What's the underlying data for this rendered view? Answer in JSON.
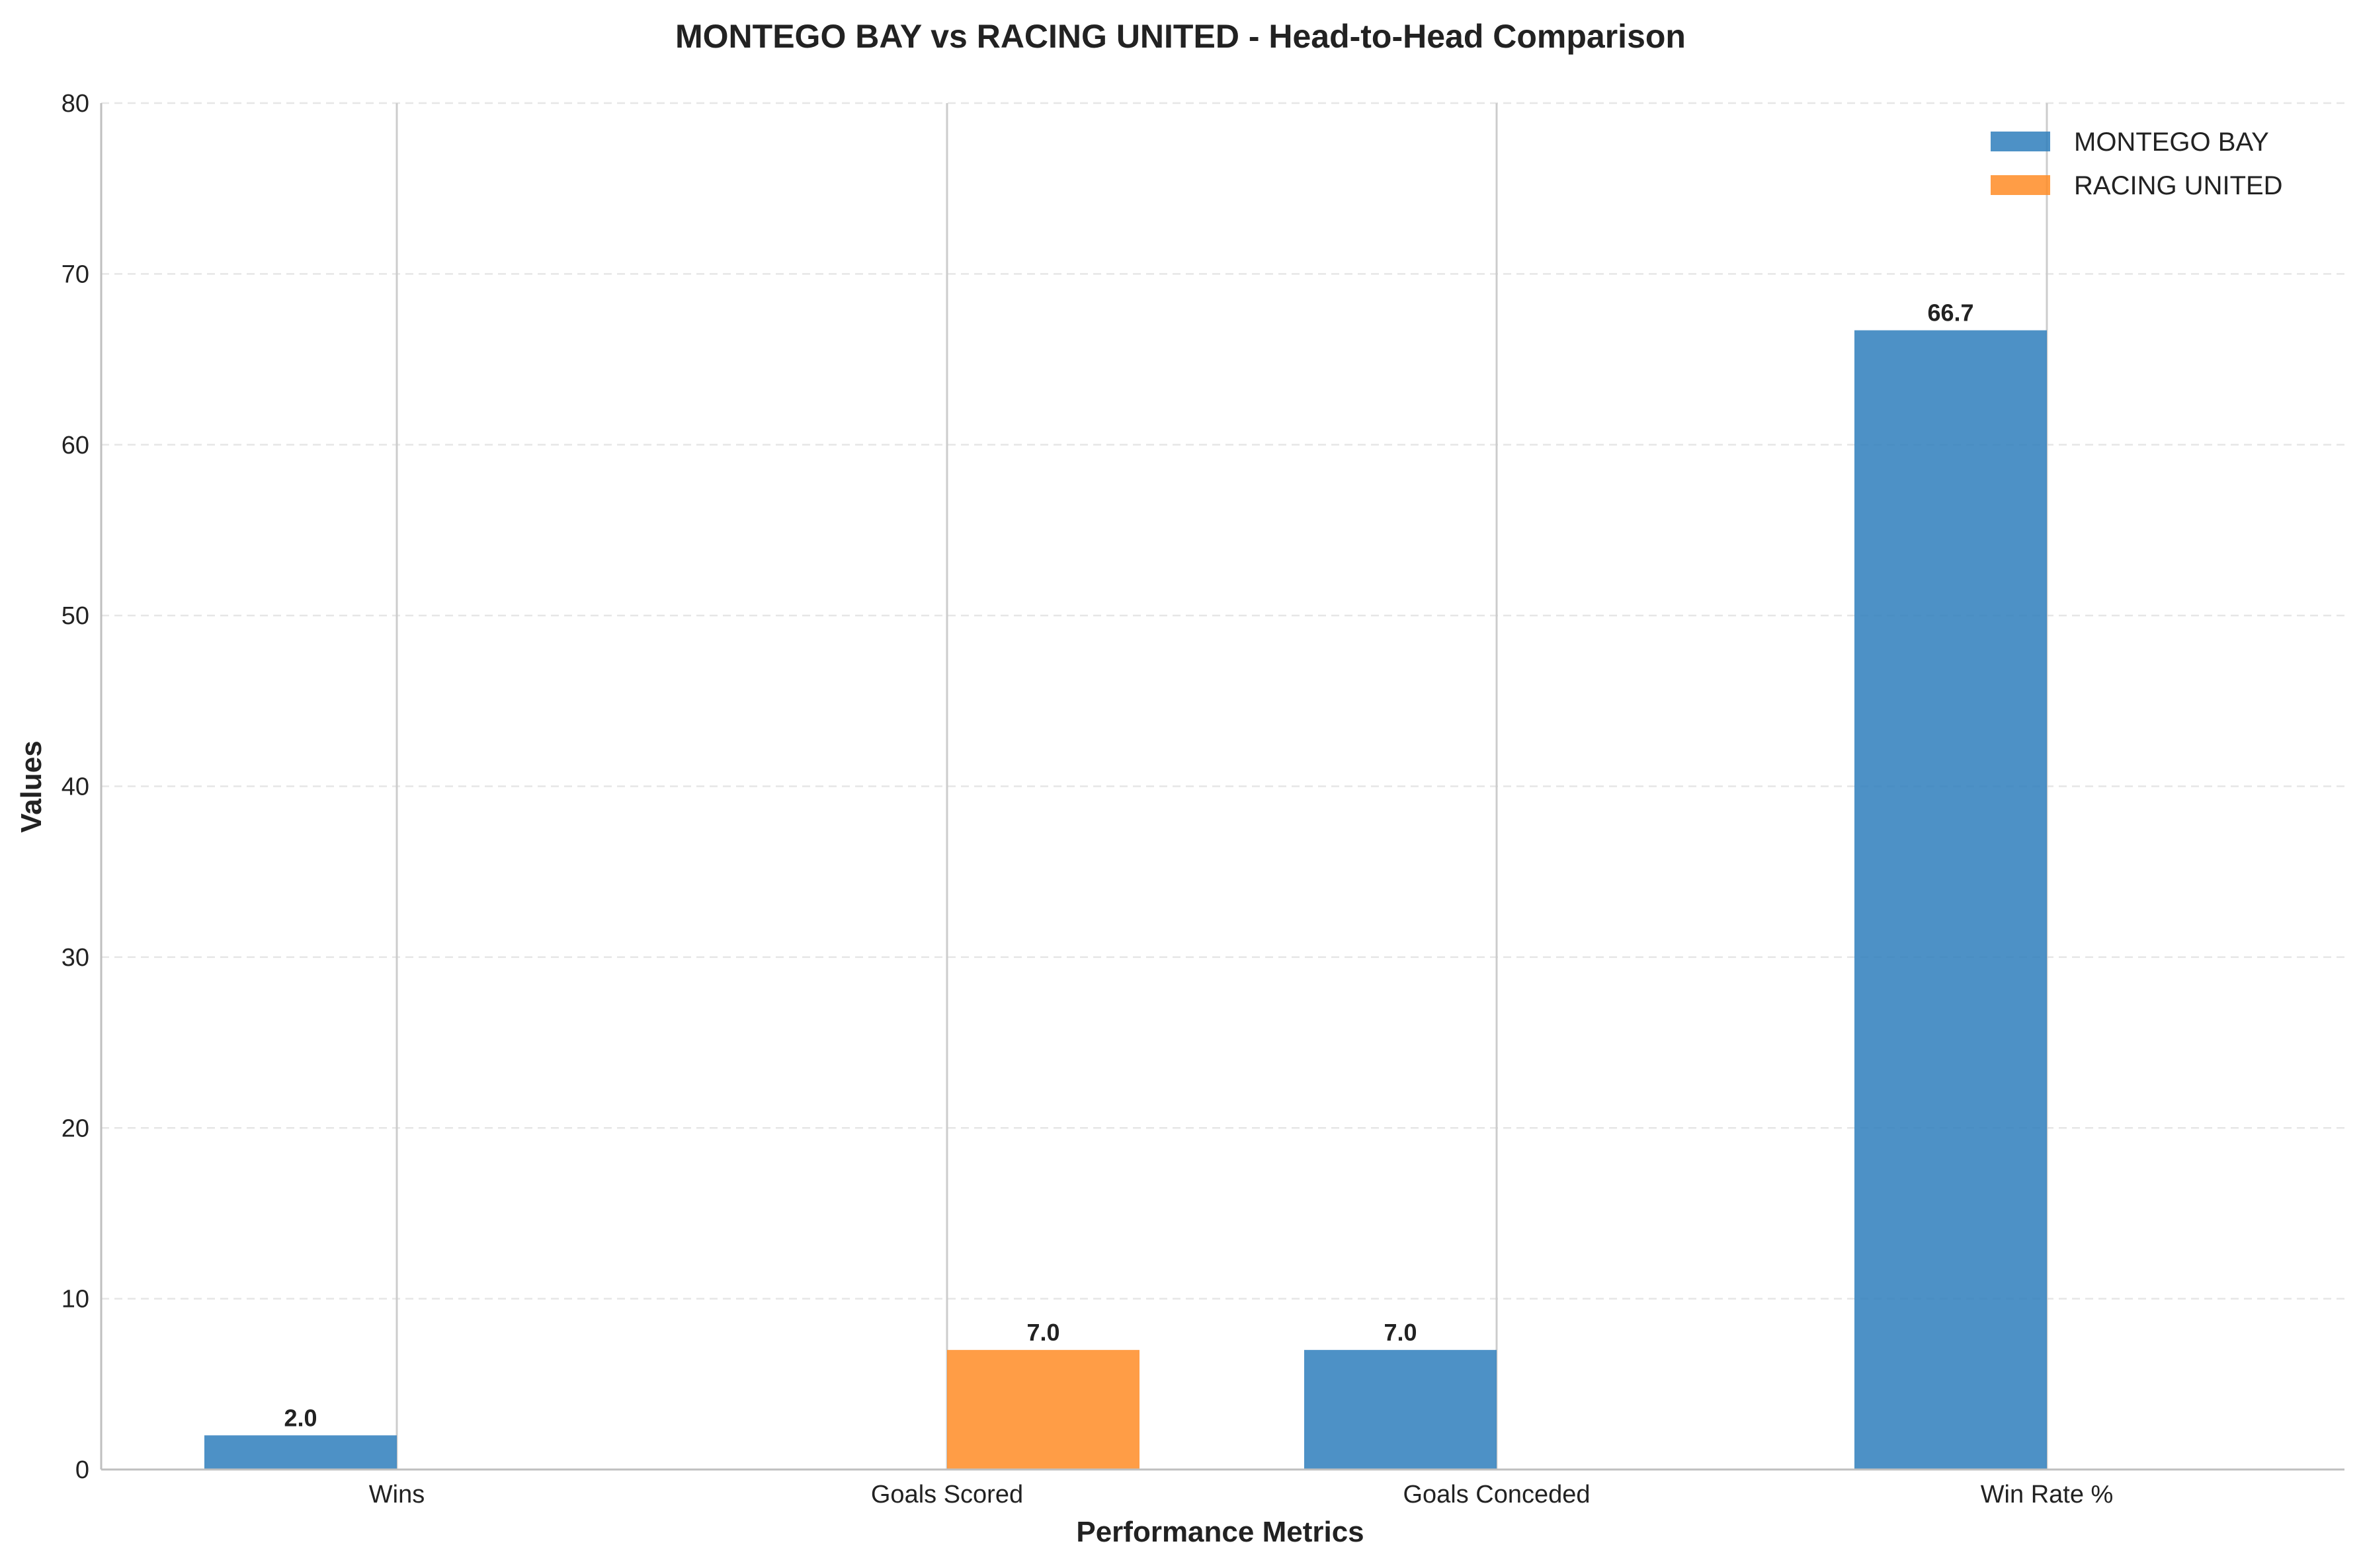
{
  "chart_data": {
    "type": "bar",
    "title": "MONTEGO BAY vs RACING UNITED - Head-to-Head Comparison",
    "xlabel": "Performance Metrics",
    "ylabel": "Values",
    "categories": [
      "Wins",
      "Goals Scored",
      "Goals Conceded",
      "Win Rate %"
    ],
    "series": [
      {
        "name": "MONTEGO BAY",
        "color": "#2e7ebc",
        "values": [
          2.0,
          0,
          7.0,
          66.7
        ]
      },
      {
        "name": "RACING UNITED",
        "color": "#ff8c26",
        "values": [
          0,
          7.0,
          0,
          0
        ]
      }
    ],
    "value_labels": [
      {
        "series": 0,
        "category": 0,
        "text": "2.0"
      },
      {
        "series": 1,
        "category": 1,
        "text": "7.0"
      },
      {
        "series": 0,
        "category": 2,
        "text": "7.0"
      },
      {
        "series": 0,
        "category": 3,
        "text": "66.7"
      }
    ],
    "ylim": [
      0,
      80
    ],
    "yticks": [
      0,
      10,
      20,
      30,
      40,
      50,
      60,
      70,
      80
    ],
    "grid": "y, dashed",
    "legend_position": "top-right"
  }
}
